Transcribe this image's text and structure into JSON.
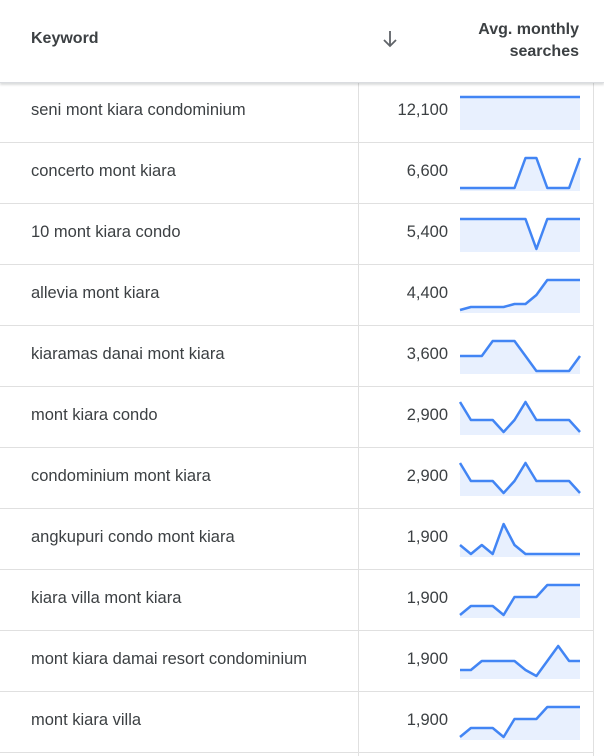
{
  "header": {
    "keyword_label": "Keyword",
    "sort_icon": "arrow-down-icon",
    "searches_label": "Avg. monthly searches"
  },
  "colors": {
    "spark_line": "#4285f4",
    "spark_fill": "#e8f0fe",
    "text": "#3c4043",
    "divider": "#e0e0e0"
  },
  "rows": [
    {
      "keyword": "seni mont kiara condominium",
      "searches": "12,100",
      "trend": [
        1,
        1,
        1,
        1,
        1,
        1,
        1,
        1,
        1,
        1,
        1,
        1
      ]
    },
    {
      "keyword": "concerto mont kiara",
      "searches": "6,600",
      "trend": [
        0,
        0,
        0,
        0,
        0,
        0,
        1,
        1,
        0,
        0,
        0,
        1
      ]
    },
    {
      "keyword": "10 mont kiara condo",
      "searches": "5,400",
      "trend": [
        1,
        1,
        1,
        1,
        1,
        1,
        1,
        0,
        1,
        1,
        1,
        1
      ]
    },
    {
      "keyword": "allevia mont kiara",
      "searches": "4,400",
      "trend": [
        0,
        0.1,
        0.1,
        0.1,
        0.1,
        0.2,
        0.2,
        0.5,
        1,
        1,
        1,
        1
      ]
    },
    {
      "keyword": "kiaramas danai mont kiara",
      "searches": "3,600",
      "trend": [
        0.5,
        0.5,
        0.5,
        1,
        1,
        1,
        0.5,
        0,
        0,
        0,
        0,
        0.5
      ]
    },
    {
      "keyword": "mont kiara condo",
      "searches": "2,900",
      "trend": [
        1,
        0.4,
        0.4,
        0.4,
        0,
        0.4,
        1,
        0.4,
        0.4,
        0.4,
        0.4,
        0
      ]
    },
    {
      "keyword": "condominium mont kiara",
      "searches": "2,900",
      "trend": [
        1,
        0.4,
        0.4,
        0.4,
        0,
        0.4,
        1,
        0.4,
        0.4,
        0.4,
        0.4,
        0
      ]
    },
    {
      "keyword": "angkupuri condo mont kiara",
      "searches": "1,900",
      "trend": [
        0.3,
        0,
        0.3,
        0,
        1,
        0.3,
        0,
        0,
        0,
        0,
        0,
        0
      ]
    },
    {
      "keyword": "kiara villa mont kiara",
      "searches": "1,900",
      "trend": [
        0,
        0.3,
        0.3,
        0.3,
        0,
        0.6,
        0.6,
        0.6,
        1,
        1,
        1,
        1
      ]
    },
    {
      "keyword": "mont kiara damai resort condominium",
      "searches": "1,900",
      "trend": [
        0.2,
        0.2,
        0.5,
        0.5,
        0.5,
        0.5,
        0.2,
        0,
        0.5,
        1,
        0.5,
        0.5
      ]
    },
    {
      "keyword": "mont kiara villa",
      "searches": "1,900",
      "trend": [
        0,
        0.3,
        0.3,
        0.3,
        0,
        0.6,
        0.6,
        0.6,
        1,
        1,
        1,
        1
      ]
    }
  ]
}
